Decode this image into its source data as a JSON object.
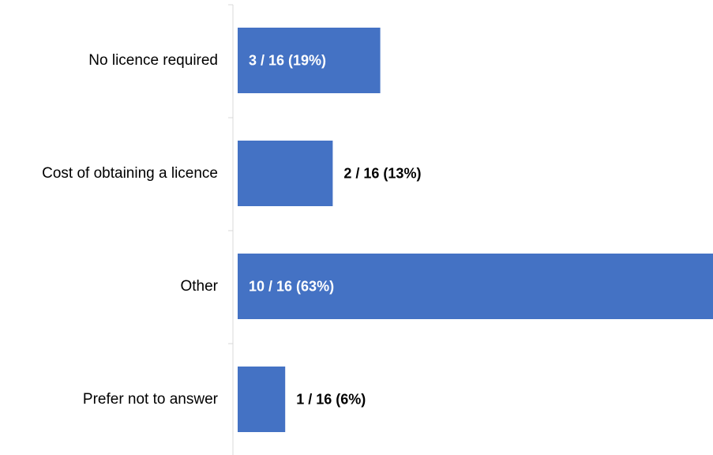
{
  "chart_data": {
    "type": "bar",
    "orientation": "horizontal",
    "categories": [
      "No licence required",
      "Cost of obtaining a licence",
      "Other",
      "Prefer not to answer"
    ],
    "values": [
      3,
      2,
      10,
      1
    ],
    "total": 16,
    "data_labels": [
      "3 / 16 (19%)",
      "2 / 16 (13%)",
      "10 / 16 (63%)",
      "1 / 16 (6%)"
    ],
    "xlim": [
      0,
      10
    ],
    "grid": false,
    "bar_color": "#4472C4",
    "axis_color": "#D9D9D9",
    "label_color_inside": "#FFFFFF",
    "label_color_outside": "#000000"
  }
}
